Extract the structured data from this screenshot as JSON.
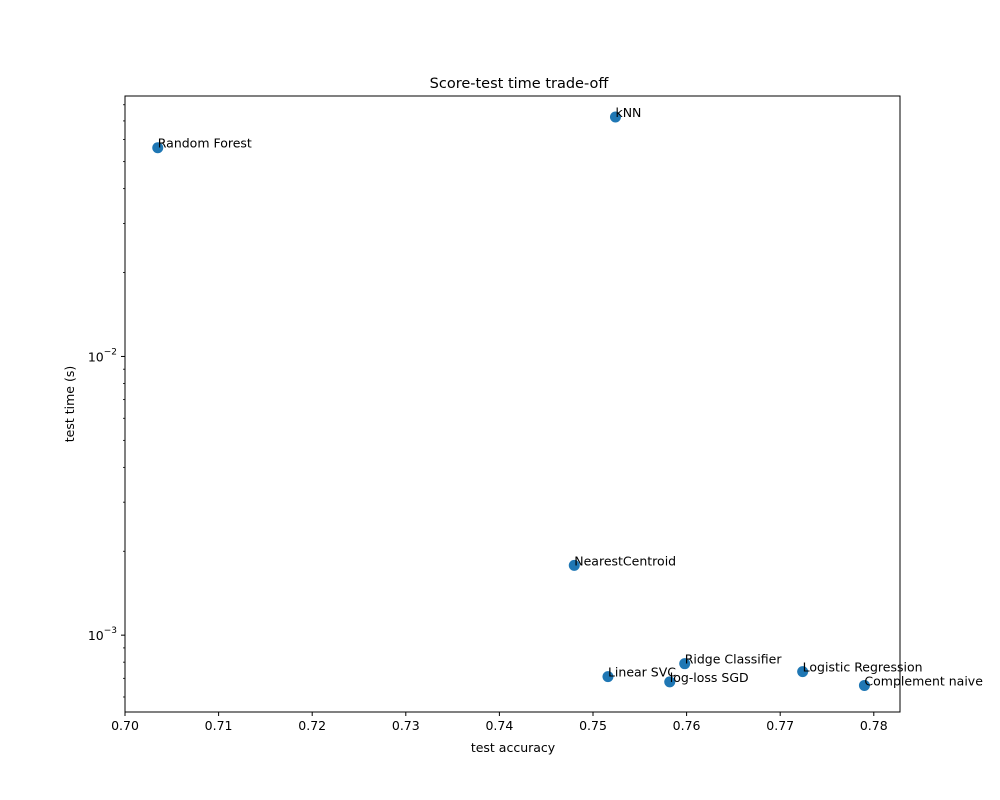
{
  "chart_data": {
    "type": "scatter",
    "title": "Score-test time trade-off",
    "xlabel": "test accuracy",
    "ylabel": "test time (s)",
    "xlim": [
      0.7,
      0.7828
    ],
    "ylim": [
      0.00053,
      0.086
    ],
    "yscale": "log",
    "grid": false,
    "x_ticks": [
      {
        "value": 0.7,
        "label": "0.70"
      },
      {
        "value": 0.71,
        "label": "0.71"
      },
      {
        "value": 0.72,
        "label": "0.72"
      },
      {
        "value": 0.73,
        "label": "0.73"
      },
      {
        "value": 0.74,
        "label": "0.74"
      },
      {
        "value": 0.75,
        "label": "0.75"
      },
      {
        "value": 0.76,
        "label": "0.76"
      },
      {
        "value": 0.77,
        "label": "0.77"
      },
      {
        "value": 0.78,
        "label": "0.78"
      }
    ],
    "y_ticks": [
      {
        "value": 0.001,
        "base": "10",
        "exp": "−3"
      },
      {
        "value": 0.01,
        "base": "10",
        "exp": "−2"
      }
    ],
    "color": "#1f77b4",
    "points": [
      {
        "label": "Random Forest",
        "x": 0.7035,
        "y": 0.0561
      },
      {
        "label": "kNN",
        "x": 0.7524,
        "y": 0.0723
      },
      {
        "label": "NearestCentroid",
        "x": 0.748,
        "y": 0.00178
      },
      {
        "label": "Ridge Classifier",
        "x": 0.7598,
        "y": 0.00079
      },
      {
        "label": "Logistic Regression",
        "x": 0.7724,
        "y": 0.00074
      },
      {
        "label": "Linear SVC",
        "x": 0.7516,
        "y": 0.00071
      },
      {
        "label": "log-loss SGD",
        "x": 0.7582,
        "y": 0.00068
      },
      {
        "label": "Complement naive",
        "x": 0.779,
        "y": 0.00066
      }
    ]
  }
}
